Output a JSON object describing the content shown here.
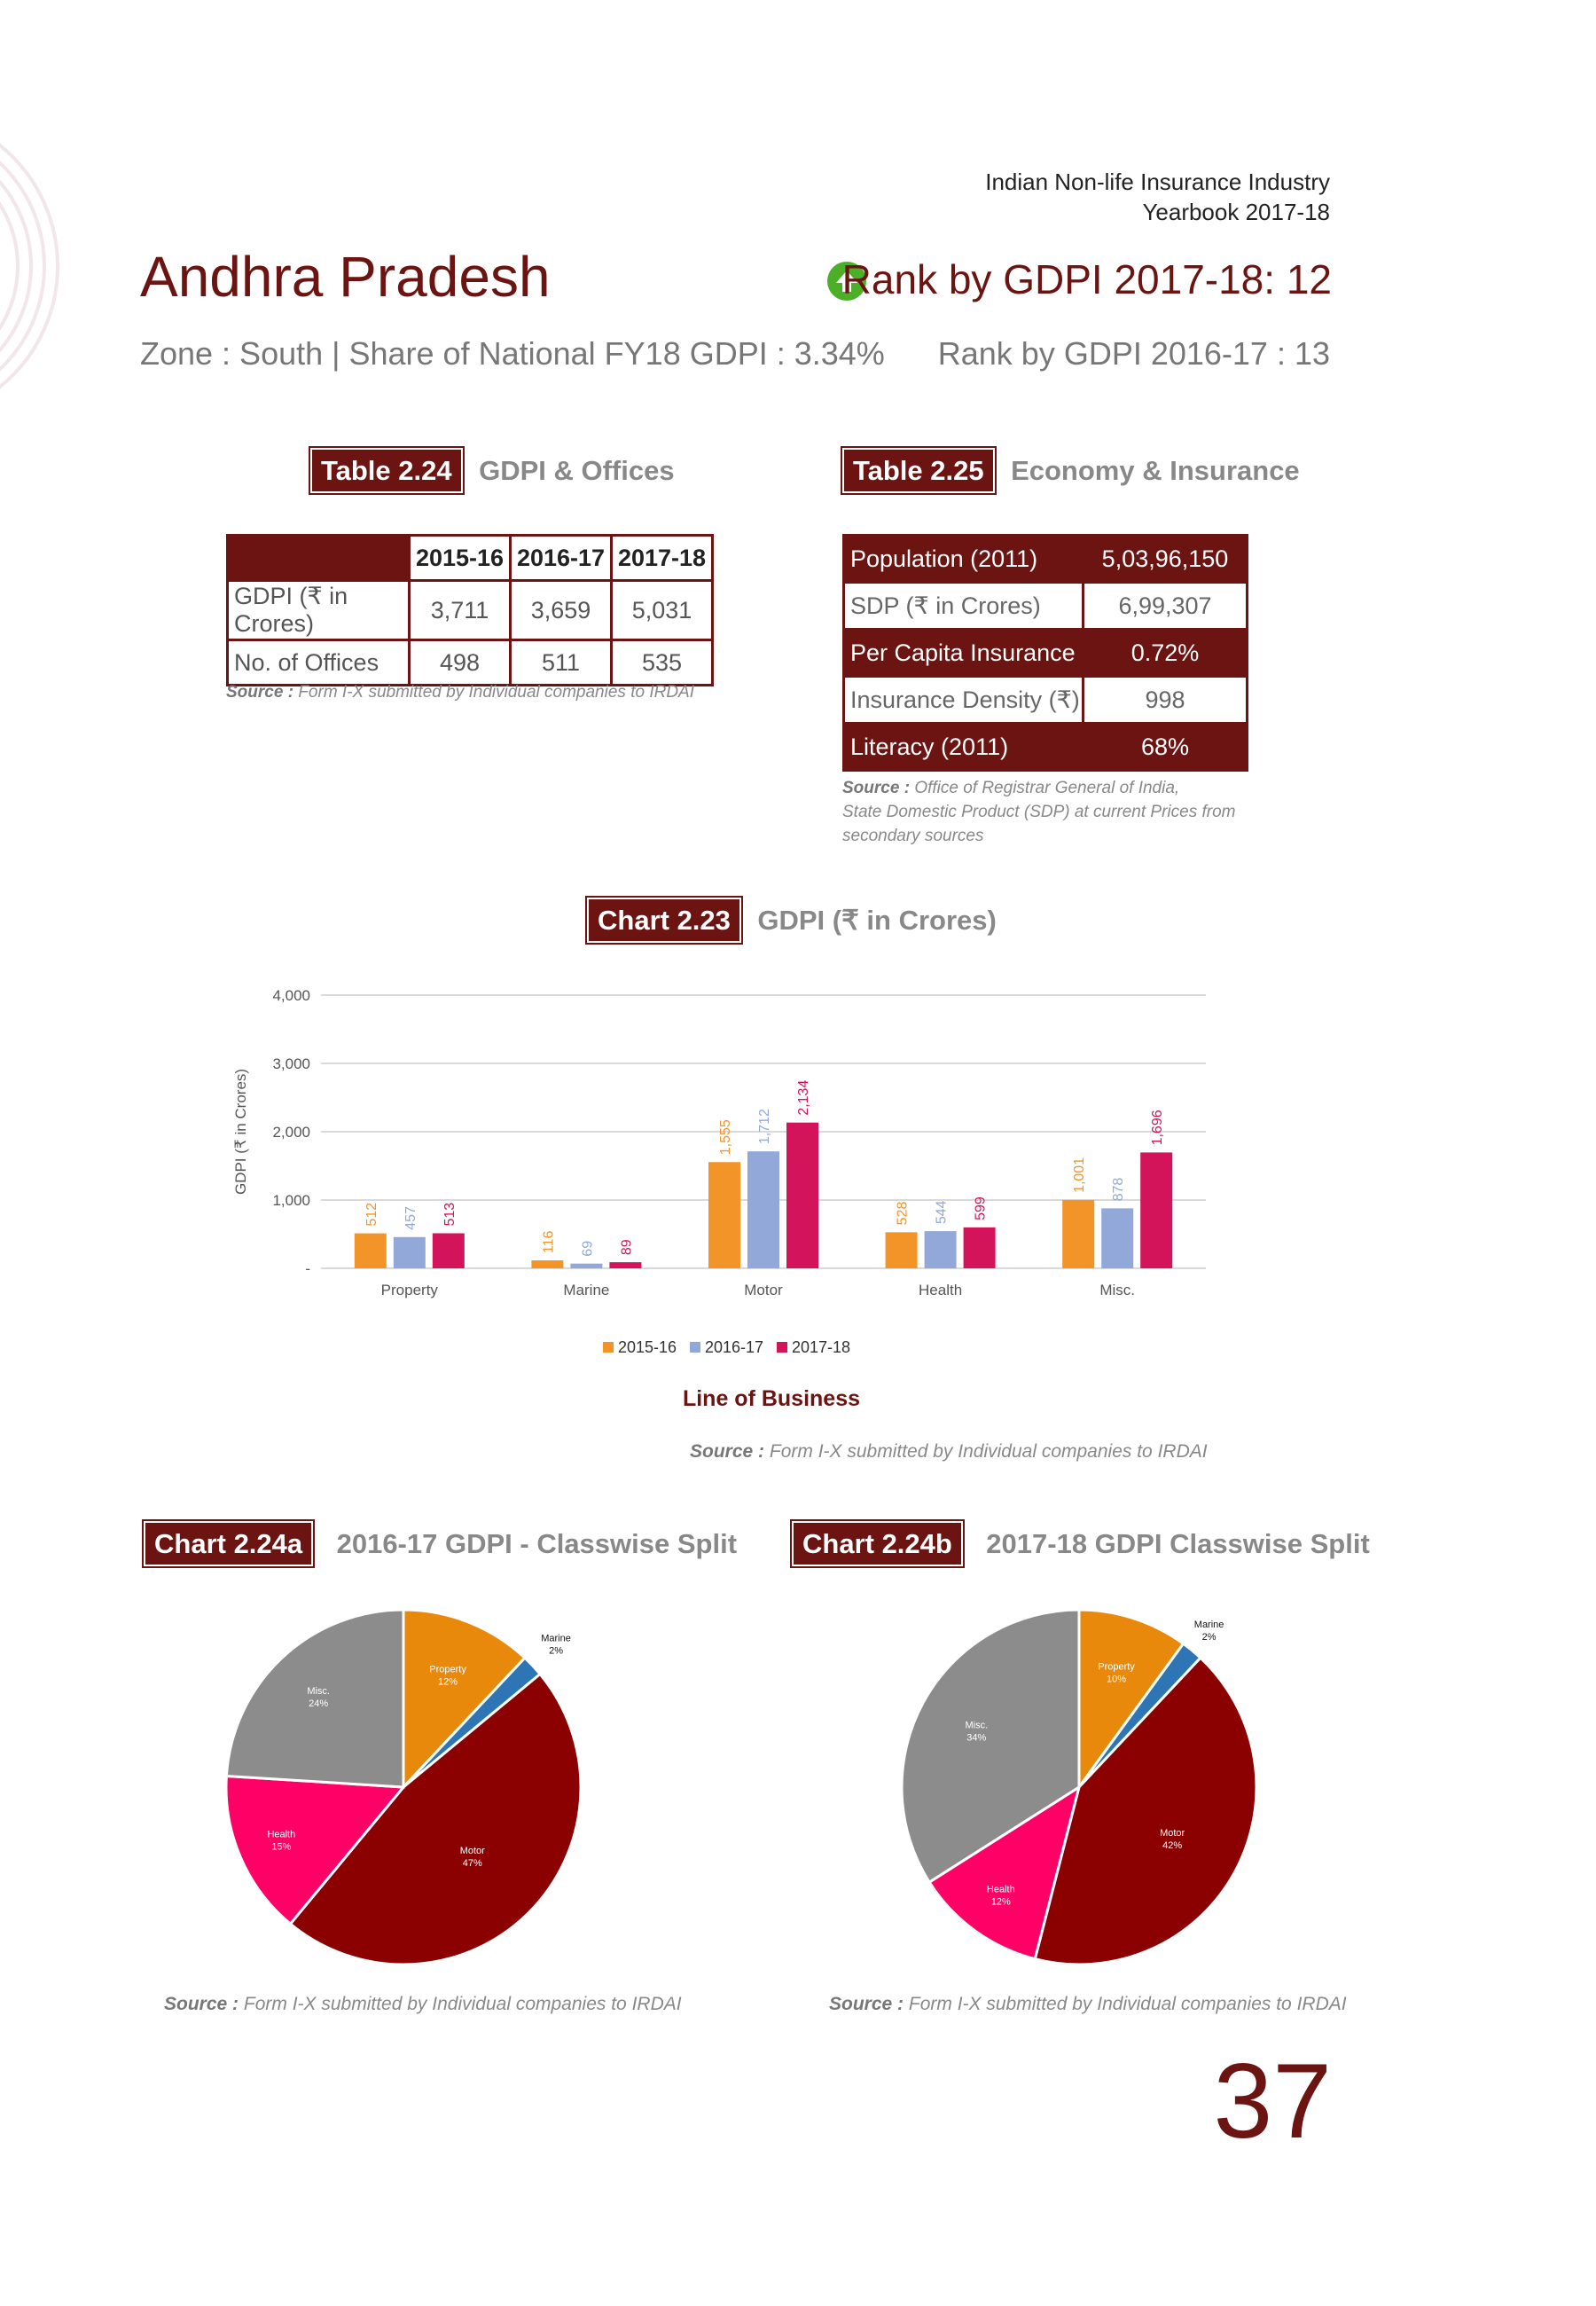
{
  "header": {
    "line1": "Indian Non-life Insurance Industry",
    "line2": "Yearbook 2017-18"
  },
  "state": {
    "name": "Andhra Pradesh",
    "rank_current": "Rank by GDPI 2017-18: 12",
    "zone_share": "Zone : South  |  Share of National FY18 GDPI : 3.34%",
    "rank_previous": "Rank by GDPI 2016-17 : 13",
    "rank_icon": "arrow-up-circle-icon",
    "rank_icon_color": "#4caf28"
  },
  "table24": {
    "badge": "Table 2.24",
    "title": "GDPI & Offices",
    "headers": [
      "2015-16",
      "2016-17",
      "2017-18"
    ],
    "rows": [
      {
        "label": "GDPI (₹ in Crores)",
        "values": [
          "3,711",
          "3,659",
          "5,031"
        ]
      },
      {
        "label": "No. of Offices",
        "values": [
          "498",
          "511",
          "535"
        ]
      }
    ],
    "source_label": "Source :",
    "source_text": "Form I-X submitted by Individual companies to IRDAI"
  },
  "table25": {
    "badge": "Table 2.25",
    "title": "Economy & Insurance",
    "rows": [
      {
        "label": "Population (2011)",
        "value": "5,03,96,150",
        "dark": true
      },
      {
        "label": "SDP (₹ in Crores)",
        "value": "6,99,307",
        "dark": false
      },
      {
        "label": "Per Capita Insurance",
        "value": "0.72%",
        "dark": true
      },
      {
        "label": "Insurance Density (₹)",
        "value": "998",
        "dark": false
      },
      {
        "label": "Literacy (2011)",
        "value": "68%",
        "dark": true
      }
    ],
    "source_label": "Source :",
    "source_line1": "Office of Registrar General of India,",
    "source_line2": "State Domestic Product (SDP) at current Prices from",
    "source_line3": "secondary sources"
  },
  "chart223": {
    "badge": "Chart 2.23",
    "title": "GDPI (₹ in Crores)",
    "source_label": "Source :",
    "source_text": "Form I-X submitted by Individual companies to IRDAI"
  },
  "chart224a": {
    "badge": "Chart 2.24a",
    "title": "2016-17 GDPI - Classwise Split",
    "source_label": "Source :",
    "source_text": "Form I-X submitted by Individual companies to IRDAI"
  },
  "chart224b": {
    "badge": "Chart 2.24b",
    "title": "2017-18 GDPI Classwise Split",
    "source_label": "Source :",
    "source_text": "Form I-X submitted by Individual companies to IRDAI"
  },
  "page_number": "37",
  "colors": {
    "maroon": "#6b1412",
    "s2015": "#f39428",
    "s2016": "#91a8d8",
    "s2017": "#d4145a",
    "property": "#e8890c",
    "marine": "#2e75b6",
    "motor": "#8b0000",
    "health": "#ff0066",
    "misc": "#8c8c8c"
  },
  "chart_data": [
    {
      "type": "bar",
      "title": "GDPI (₹ in Crores)",
      "xlabel": "Line of Business",
      "ylabel": "GDPI (₹ in Crores)",
      "ylim": [
        0,
        4000
      ],
      "yticks": [
        "-",
        "1,000",
        "2,000",
        "3,000",
        "4,000"
      ],
      "ytick_values": [
        0,
        1000,
        2000,
        3000,
        4000
      ],
      "grid": true,
      "legend": "bottom",
      "categories": [
        "Property",
        "Marine",
        "Motor",
        "Health",
        "Misc."
      ],
      "series": [
        {
          "name": "2015-16",
          "values": [
            512,
            116,
            1555,
            528,
            1001
          ],
          "labels": [
            "512",
            "116",
            "1,555",
            "528",
            "1,001"
          ]
        },
        {
          "name": "2016-17",
          "values": [
            457,
            69,
            1712,
            544,
            878
          ],
          "labels": [
            "457",
            "69",
            "1,712",
            "544",
            "878"
          ]
        },
        {
          "name": "2017-18",
          "values": [
            513,
            89,
            2134,
            599,
            1696
          ],
          "labels": [
            "513",
            "89",
            "2,134",
            "599",
            "1,696"
          ]
        }
      ]
    },
    {
      "type": "pie",
      "title": "2016-17 GDPI - Classwise Split",
      "slices": [
        {
          "name": "Property",
          "value": 12,
          "label": "12%"
        },
        {
          "name": "Marine",
          "value": 2,
          "label": "2%"
        },
        {
          "name": "Motor",
          "value": 47,
          "label": "47%"
        },
        {
          "name": "Health",
          "value": 15,
          "label": "15%"
        },
        {
          "name": "Misc.",
          "value": 24,
          "label": "24%"
        }
      ]
    },
    {
      "type": "pie",
      "title": "2017-18 GDPI Classwise Split",
      "slices": [
        {
          "name": "Property",
          "value": 10,
          "label": "10%"
        },
        {
          "name": "Marine",
          "value": 2,
          "label": "2%"
        },
        {
          "name": "Motor",
          "value": 42,
          "label": "42%"
        },
        {
          "name": "Health",
          "value": 12,
          "label": "12%"
        },
        {
          "name": "Misc.",
          "value": 34,
          "label": "34%"
        }
      ]
    }
  ]
}
